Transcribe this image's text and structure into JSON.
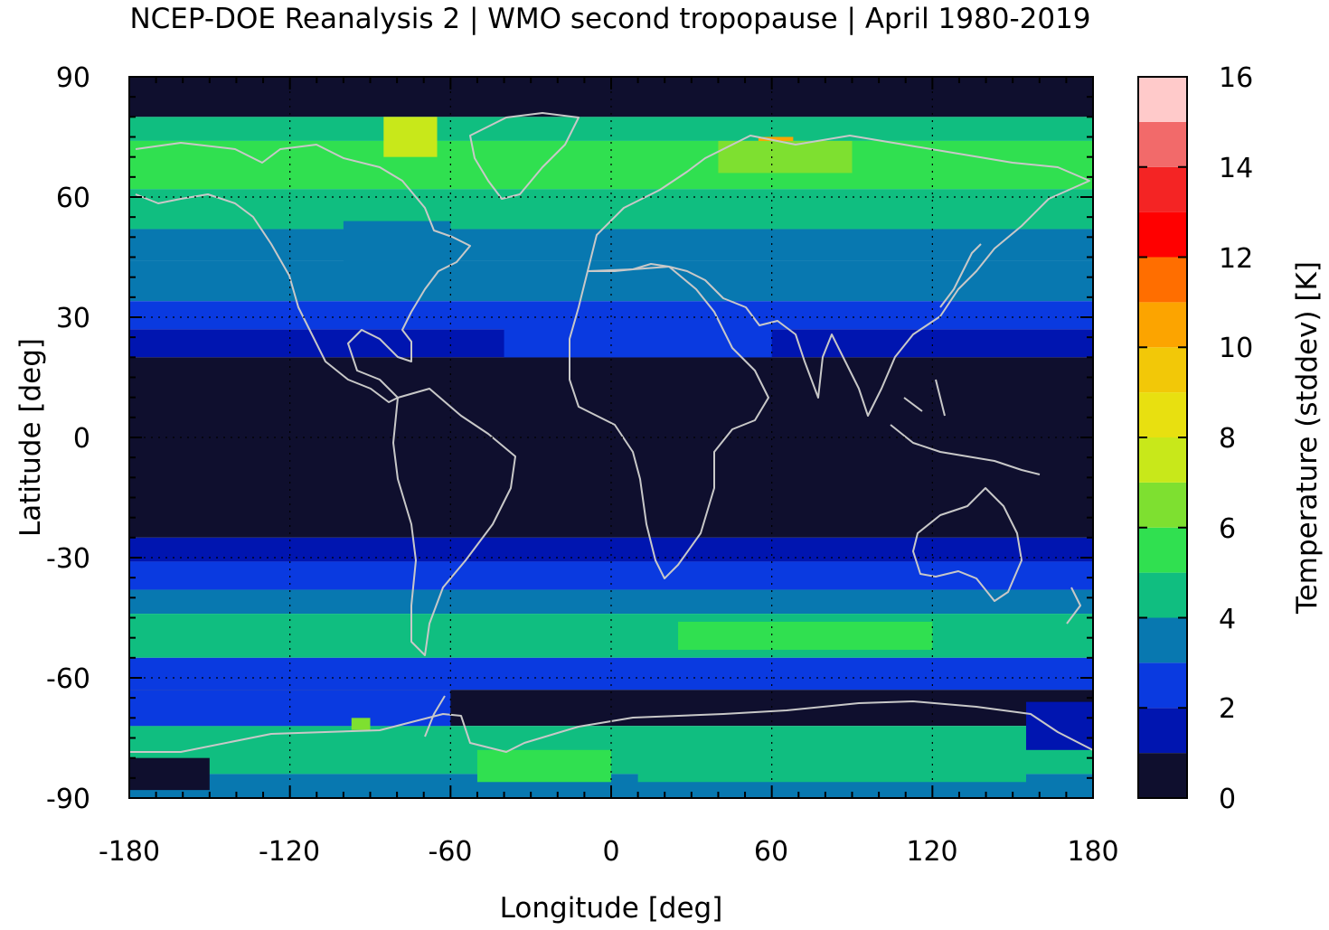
{
  "chart_data": {
    "type": "heatmap",
    "title": "NCEP-DOE Reanalysis 2 | WMO second tropopause | April 1980-2019",
    "xlabel": "Longitude [deg]",
    "ylabel": "Latitude [deg]",
    "colorbar_label": "Temperature (stddev) [K]",
    "xlim": [
      -180,
      180
    ],
    "ylim": [
      -90,
      90
    ],
    "x_ticks": [
      "-180",
      "-120",
      "-60",
      "0",
      "60",
      "120",
      "180"
    ],
    "y_ticks": [
      "-90",
      "-60",
      "-30",
      "0",
      "30",
      "60",
      "90"
    ],
    "colorbar_range": [
      0,
      16
    ],
    "colorbar_ticks": [
      "0",
      "2",
      "4",
      "6",
      "8",
      "10",
      "12",
      "14",
      "16"
    ],
    "colorbar_levels": [
      {
        "from": 0,
        "to": 1,
        "color": "#0f0f2e"
      },
      {
        "from": 1,
        "to": 2,
        "color": "#0015b0"
      },
      {
        "from": 2,
        "to": 3,
        "color": "#0a3ae0"
      },
      {
        "from": 3,
        "to": 4,
        "color": "#0878b0"
      },
      {
        "from": 4,
        "to": 5,
        "color": "#10be80"
      },
      {
        "from": 5,
        "to": 6,
        "color": "#30e050"
      },
      {
        "from": 6,
        "to": 7,
        "color": "#7ee030"
      },
      {
        "from": 7,
        "to": 8,
        "color": "#c8e81a"
      },
      {
        "from": 8,
        "to": 9,
        "color": "#e8e010"
      },
      {
        "from": 9,
        "to": 10,
        "color": "#f2c808"
      },
      {
        "from": 10,
        "to": 11,
        "color": "#fca400"
      },
      {
        "from": 11,
        "to": 12,
        "color": "#ff6e00"
      },
      {
        "from": 12,
        "to": 13,
        "color": "#ff0000"
      },
      {
        "from": 13,
        "to": 14,
        "color": "#f42424"
      },
      {
        "from": 14,
        "to": 15,
        "color": "#f26a6a"
      },
      {
        "from": 15,
        "to": 16,
        "color": "#ffcaca"
      }
    ],
    "lat_bands": [
      {
        "lat": [
          80,
          90
        ],
        "value": 0.5
      },
      {
        "lat": [
          74,
          80
        ],
        "value": 4.5
      },
      {
        "lat": [
          62,
          74
        ],
        "value": 5.2
      },
      {
        "lat": [
          52,
          62
        ],
        "value": 4.5
      },
      {
        "lat": [
          44,
          52
        ],
        "value": 3.5
      },
      {
        "lat": [
          34,
          44
        ],
        "value": 3.2
      },
      {
        "lat": [
          27,
          34
        ],
        "value": 2.5
      },
      {
        "lat": [
          20,
          27
        ],
        "value": 1.5
      },
      {
        "lat": [
          -25,
          20
        ],
        "value": 0.5
      },
      {
        "lat": [
          -31,
          -25
        ],
        "value": 1.5
      },
      {
        "lat": [
          -38,
          -31
        ],
        "value": 2.5
      },
      {
        "lat": [
          -44,
          -38
        ],
        "value": 3.3
      },
      {
        "lat": [
          -55,
          -44
        ],
        "value": 4.3
      },
      {
        "lat": [
          -63,
          -55
        ],
        "value": 2.5
      },
      {
        "lat": [
          -72,
          -63
        ],
        "value": 0.5
      },
      {
        "lat": [
          -84,
          -72
        ],
        "value": 4.5
      },
      {
        "lat": [
          -90,
          -84
        ],
        "value": 3.5
      }
    ],
    "features": [
      {
        "lon": [
          -85,
          -65
        ],
        "lat": [
          70,
          80
        ],
        "value": 7.5
      },
      {
        "lon": [
          55,
          68
        ],
        "lat": [
          69,
          75
        ],
        "value": 10.5
      },
      {
        "lon": [
          40,
          90
        ],
        "lat": [
          66,
          74
        ],
        "value": 6.5
      },
      {
        "lon": [
          -40,
          60
        ],
        "lat": [
          20,
          30
        ],
        "value": 2.5
      },
      {
        "lon": [
          -100,
          -60
        ],
        "lat": [
          44,
          54
        ],
        "value": 3.5
      },
      {
        "lon": [
          -180,
          -60
        ],
        "lat": [
          -72,
          -63
        ],
        "value": 2.5
      },
      {
        "lon": [
          -97,
          -90
        ],
        "lat": [
          -73,
          -70
        ],
        "value": 6.5
      },
      {
        "lon": [
          -180,
          -150
        ],
        "lat": [
          -88,
          -80
        ],
        "value": 0.5
      },
      {
        "lon": [
          -50,
          0
        ],
        "lat": [
          -86,
          -78
        ],
        "value": 5.5
      },
      {
        "lon": [
          10,
          155
        ],
        "lat": [
          -86,
          -74
        ],
        "value": 4.5
      },
      {
        "lon": [
          25,
          120
        ],
        "lat": [
          -53,
          -46
        ],
        "value": 5.5
      },
      {
        "lon": [
          155,
          180
        ],
        "lat": [
          -78,
          -66
        ],
        "value": 1.5
      }
    ]
  }
}
